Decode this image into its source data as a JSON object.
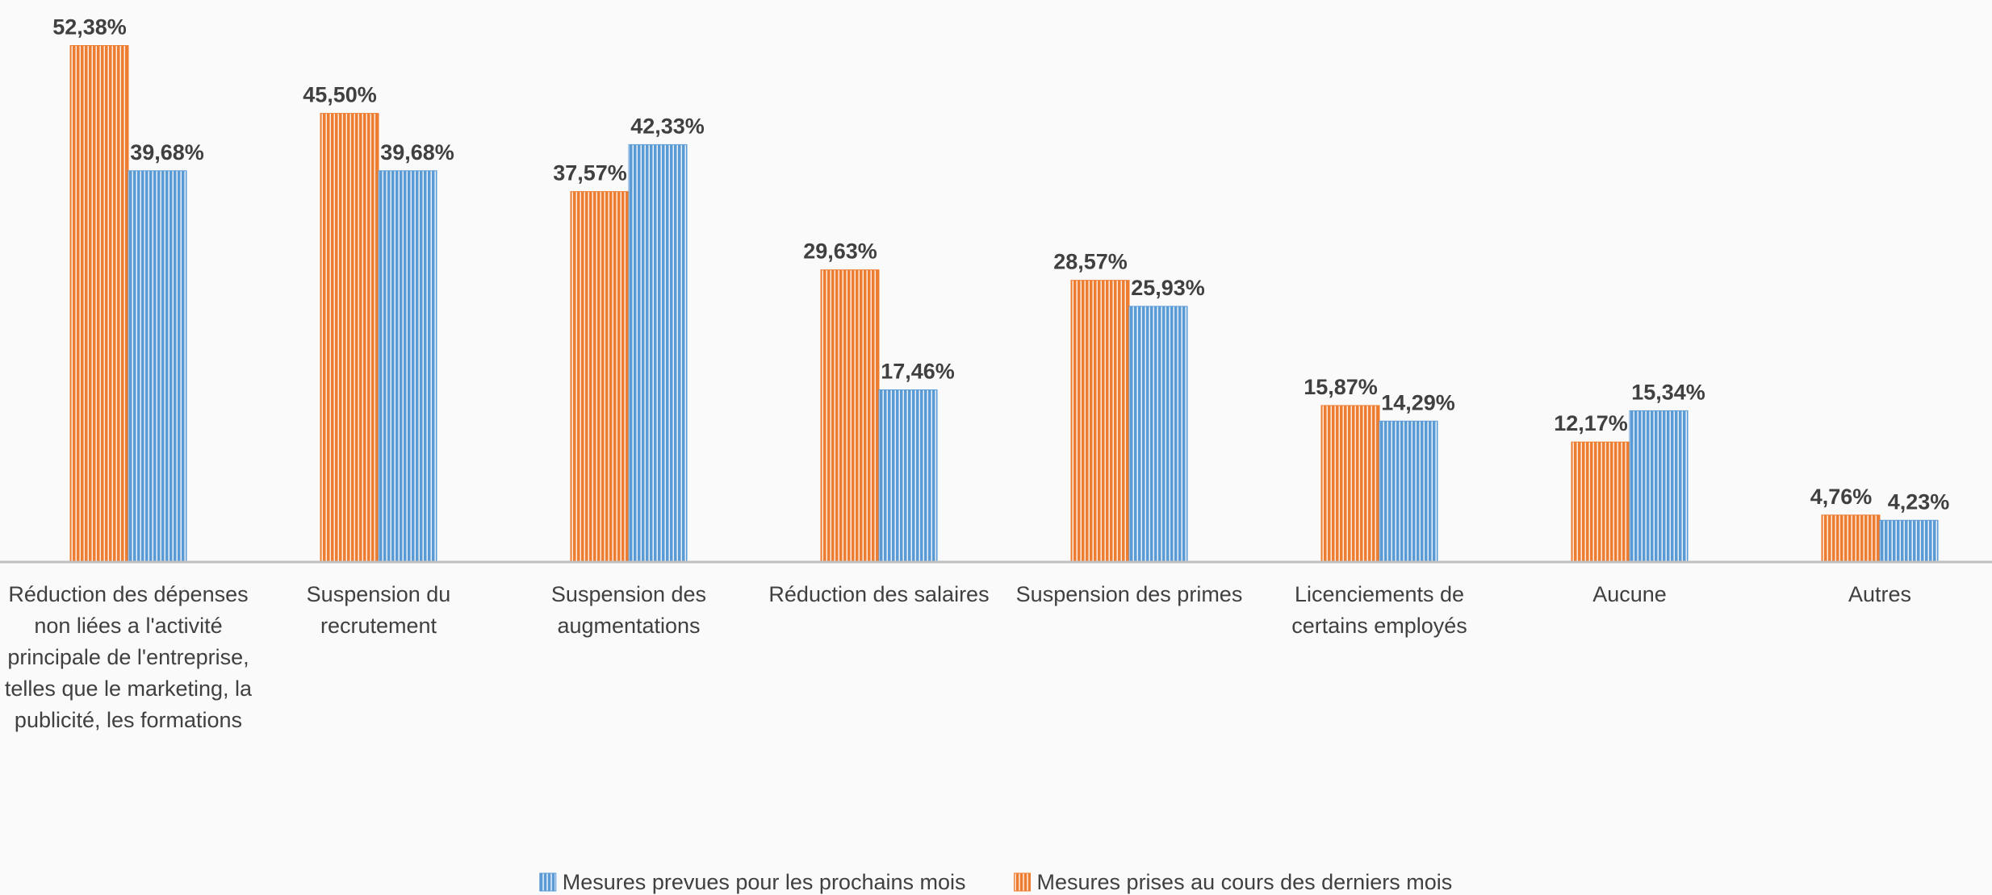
{
  "chart_data": {
    "type": "bar",
    "categories": [
      "Réduction des dépenses non liées a l'activité principale de l'entreprise, telles que le marketing, la publicité, les formations",
      "Suspension du recrutement",
      "Suspension des augmentations",
      "Réduction des salaires",
      "Suspension des primes",
      "Licenciements de certains employés",
      "Aucune",
      "Autres"
    ],
    "series": [
      {
        "name": "Mesures prises au cours des derniers mois",
        "color": "#ed7d31",
        "values": [
          52.38,
          45.5,
          37.57,
          29.63,
          28.57,
          15.87,
          12.17,
          4.76
        ],
        "value_labels": [
          "52,38%",
          "45,50%",
          "37,57%",
          "29,63%",
          "28,57%",
          "15,87%",
          "12,17%",
          "4,76%"
        ]
      },
      {
        "name": "Mesures prevues pour les prochains mois",
        "color": "#5b9bd5",
        "values": [
          39.68,
          39.68,
          42.33,
          17.46,
          25.93,
          14.29,
          15.34,
          4.23
        ],
        "value_labels": [
          "39,68%",
          "39,68%",
          "42,33%",
          "17,46%",
          "25,93%",
          "14,29%",
          "15,34%",
          "4,23%"
        ]
      }
    ],
    "ylim": [
      0,
      57
    ],
    "legend": "bottom"
  }
}
